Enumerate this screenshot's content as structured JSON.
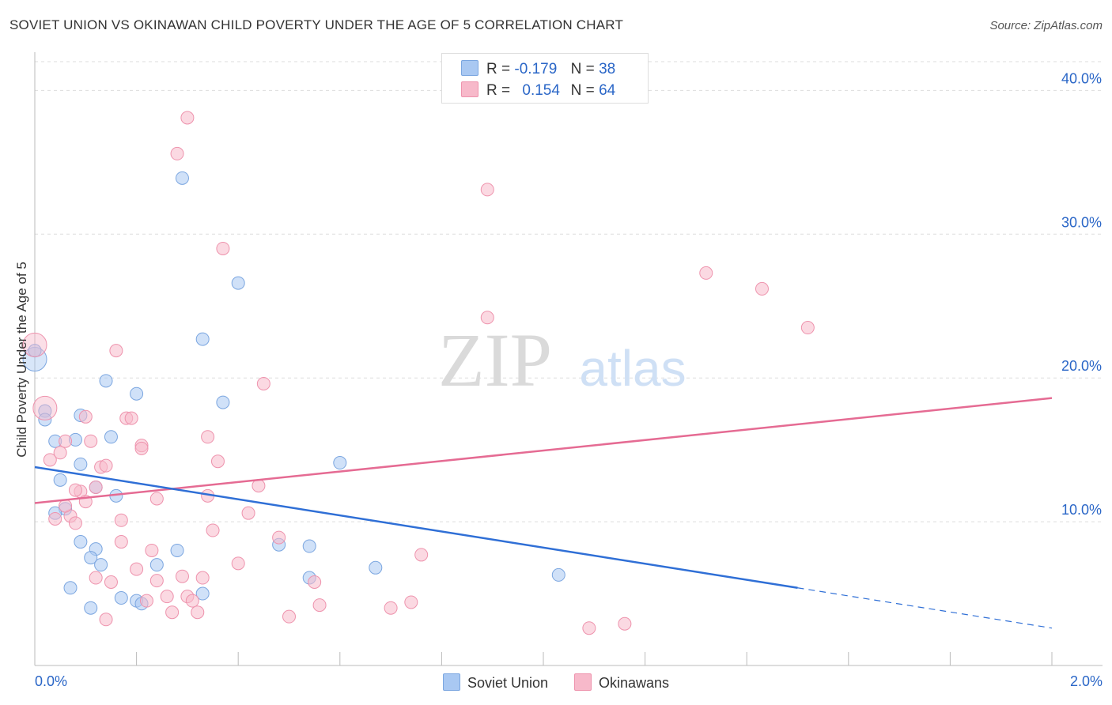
{
  "header": {
    "title": "SOVIET UNION VS OKINAWAN CHILD POVERTY UNDER THE AGE OF 5 CORRELATION CHART",
    "source": "Source: ZipAtlas.com"
  },
  "watermark": {
    "zip": "ZIP",
    "atlas": "atlas"
  },
  "legend": {
    "rows": [
      {
        "r_label": "R =",
        "r_value": "-0.179",
        "n_label": "N =",
        "n_value": "38",
        "color": "#a9c8f2"
      },
      {
        "r_label": "R =",
        "r_value": "0.154",
        "n_label": "N =",
        "n_value": "64",
        "color": "#f7b9ca"
      }
    ]
  },
  "chart_data": {
    "type": "scatter",
    "title": "SOVIET UNION VS OKINAWAN CHILD POVERTY UNDER THE AGE OF 5 CORRELATION CHART",
    "xlabel": "",
    "ylabel": "Child Poverty Under the Age of 5",
    "xlim": [
      0,
      2.0
    ],
    "ylim": [
      0,
      42
    ],
    "x_tick_labels": [
      "0.0%",
      "2.0%"
    ],
    "y_ticks": [
      10,
      20,
      30,
      40
    ],
    "y_tick_labels": [
      "10.0%",
      "20.0%",
      "30.0%",
      "40.0%"
    ],
    "grid": true,
    "legend_position": "top-center",
    "series": [
      {
        "name": "Soviet Union",
        "color": "#a9c8f2",
        "line_color": "#2f6fd6",
        "trend": {
          "x_start": 0.0,
          "y_start": 13.8,
          "x_solid_end": 1.5,
          "y_solid_end": 5.4,
          "x_end": 2.0,
          "y_end": 2.6
        },
        "points": [
          {
            "x": 0.0,
            "y": 21.3,
            "s": "large"
          },
          {
            "x": 0.02,
            "y": 17.7
          },
          {
            "x": 0.02,
            "y": 17.1
          },
          {
            "x": 0.04,
            "y": 15.6
          },
          {
            "x": 0.05,
            "y": 12.9
          },
          {
            "x": 0.06,
            "y": 10.9
          },
          {
            "x": 0.04,
            "y": 10.6
          },
          {
            "x": 0.09,
            "y": 14.0
          },
          {
            "x": 0.08,
            "y": 15.7
          },
          {
            "x": 0.09,
            "y": 17.4
          },
          {
            "x": 0.09,
            "y": 8.6
          },
          {
            "x": 0.12,
            "y": 8.1
          },
          {
            "x": 0.11,
            "y": 7.5
          },
          {
            "x": 0.13,
            "y": 7.0
          },
          {
            "x": 0.12,
            "y": 12.4
          },
          {
            "x": 0.15,
            "y": 15.9
          },
          {
            "x": 0.14,
            "y": 19.8
          },
          {
            "x": 0.16,
            "y": 11.8
          },
          {
            "x": 0.2,
            "y": 18.9
          },
          {
            "x": 0.07,
            "y": 5.4
          },
          {
            "x": 0.11,
            "y": 4.0
          },
          {
            "x": 0.17,
            "y": 4.7
          },
          {
            "x": 0.2,
            "y": 4.5
          },
          {
            "x": 0.21,
            "y": 4.3
          },
          {
            "x": 0.24,
            "y": 7.0
          },
          {
            "x": 0.28,
            "y": 8.0
          },
          {
            "x": 0.29,
            "y": 33.9
          },
          {
            "x": 0.33,
            "y": 22.7
          },
          {
            "x": 0.33,
            "y": 5.0
          },
          {
            "x": 0.37,
            "y": 18.3
          },
          {
            "x": 0.4,
            "y": 26.6
          },
          {
            "x": 0.48,
            "y": 8.4
          },
          {
            "x": 0.54,
            "y": 8.3
          },
          {
            "x": 0.54,
            "y": 6.1
          },
          {
            "x": 0.6,
            "y": 14.1
          },
          {
            "x": 0.67,
            "y": 6.8
          },
          {
            "x": 1.03,
            "y": 6.3
          },
          {
            "x": 0.0,
            "y": 21.9
          }
        ]
      },
      {
        "name": "Okinawans",
        "color": "#f7b9ca",
        "line_color": "#e56b93",
        "trend": {
          "x_start": 0.0,
          "y_start": 11.3,
          "x_end": 2.0,
          "y_end": 18.6
        },
        "points": [
          {
            "x": 0.0,
            "y": 22.3,
            "s": "large"
          },
          {
            "x": 0.02,
            "y": 17.9,
            "s": "large"
          },
          {
            "x": 0.03,
            "y": 14.3
          },
          {
            "x": 0.04,
            "y": 10.2
          },
          {
            "x": 0.05,
            "y": 14.8
          },
          {
            "x": 0.06,
            "y": 15.6
          },
          {
            "x": 0.07,
            "y": 10.4
          },
          {
            "x": 0.08,
            "y": 9.9
          },
          {
            "x": 0.09,
            "y": 12.1
          },
          {
            "x": 0.1,
            "y": 11.4
          },
          {
            "x": 0.1,
            "y": 17.3
          },
          {
            "x": 0.11,
            "y": 15.6
          },
          {
            "x": 0.12,
            "y": 12.4
          },
          {
            "x": 0.13,
            "y": 13.8
          },
          {
            "x": 0.12,
            "y": 6.1
          },
          {
            "x": 0.14,
            "y": 3.2
          },
          {
            "x": 0.15,
            "y": 5.8
          },
          {
            "x": 0.16,
            "y": 21.9
          },
          {
            "x": 0.17,
            "y": 10.1
          },
          {
            "x": 0.17,
            "y": 8.6
          },
          {
            "x": 0.18,
            "y": 17.2
          },
          {
            "x": 0.19,
            "y": 17.2
          },
          {
            "x": 0.2,
            "y": 6.7
          },
          {
            "x": 0.21,
            "y": 15.3
          },
          {
            "x": 0.21,
            "y": 15.1
          },
          {
            "x": 0.22,
            "y": 4.5
          },
          {
            "x": 0.23,
            "y": 8.0
          },
          {
            "x": 0.24,
            "y": 5.9
          },
          {
            "x": 0.24,
            "y": 11.6
          },
          {
            "x": 0.26,
            "y": 4.8
          },
          {
            "x": 0.27,
            "y": 3.7
          },
          {
            "x": 0.28,
            "y": 35.6
          },
          {
            "x": 0.29,
            "y": 6.2
          },
          {
            "x": 0.3,
            "y": 4.8
          },
          {
            "x": 0.3,
            "y": 38.1
          },
          {
            "x": 0.31,
            "y": 4.5
          },
          {
            "x": 0.32,
            "y": 3.7
          },
          {
            "x": 0.33,
            "y": 6.1
          },
          {
            "x": 0.34,
            "y": 11.8
          },
          {
            "x": 0.34,
            "y": 15.9
          },
          {
            "x": 0.35,
            "y": 9.4
          },
          {
            "x": 0.36,
            "y": 14.2
          },
          {
            "x": 0.37,
            "y": 29.0
          },
          {
            "x": 0.4,
            "y": 7.1
          },
          {
            "x": 0.42,
            "y": 10.6
          },
          {
            "x": 0.44,
            "y": 12.5
          },
          {
            "x": 0.45,
            "y": 19.6
          },
          {
            "x": 0.48,
            "y": 8.9
          },
          {
            "x": 0.5,
            "y": 3.4
          },
          {
            "x": 0.55,
            "y": 5.8
          },
          {
            "x": 0.56,
            "y": 4.2
          },
          {
            "x": 0.7,
            "y": 4.0
          },
          {
            "x": 0.74,
            "y": 4.4
          },
          {
            "x": 0.76,
            "y": 7.7
          },
          {
            "x": 0.89,
            "y": 33.1
          },
          {
            "x": 0.89,
            "y": 24.2
          },
          {
            "x": 1.09,
            "y": 2.6
          },
          {
            "x": 1.16,
            "y": 2.9
          },
          {
            "x": 1.32,
            "y": 27.3
          },
          {
            "x": 1.43,
            "y": 26.2
          },
          {
            "x": 1.52,
            "y": 23.5
          },
          {
            "x": 0.06,
            "y": 11.1
          },
          {
            "x": 0.08,
            "y": 12.2
          },
          {
            "x": 0.14,
            "y": 13.9
          }
        ]
      }
    ]
  }
}
